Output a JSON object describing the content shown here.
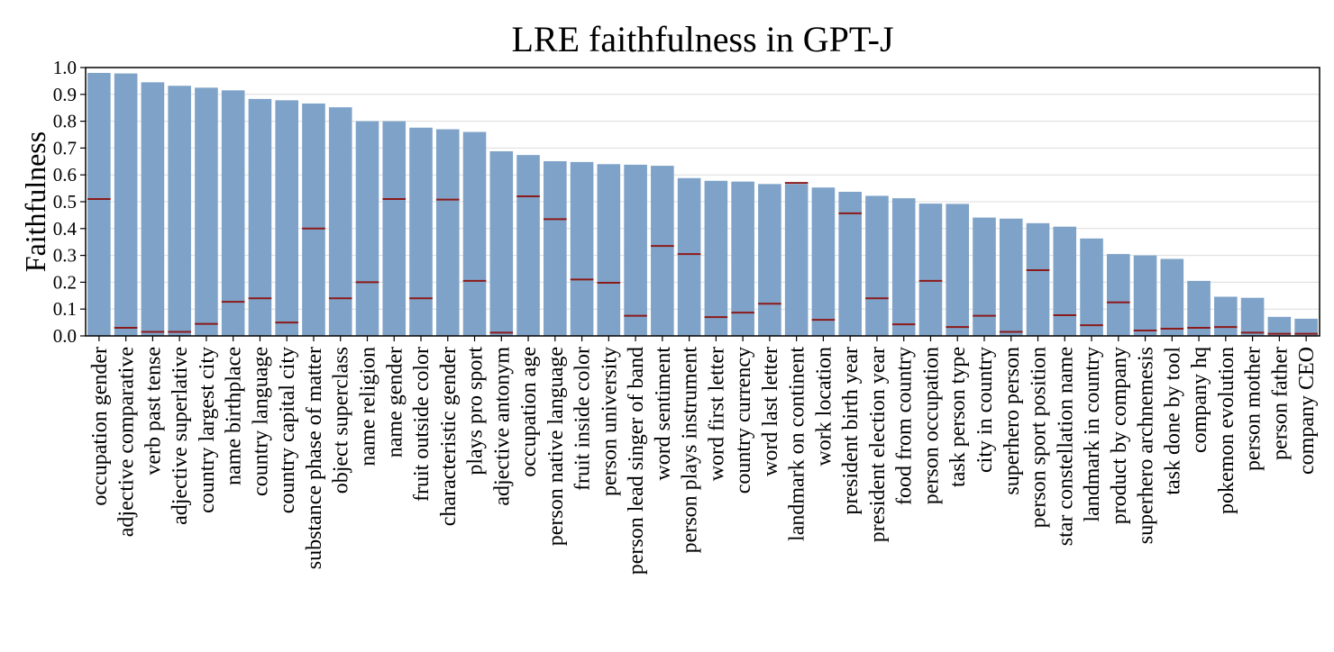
{
  "chart_data": {
    "type": "bar",
    "title": "LRE faithfulness in GPT-J",
    "xlabel": "",
    "ylabel": "Faithfulness",
    "ylim": [
      0.0,
      1.0
    ],
    "yticks": [
      "0.0",
      "0.1",
      "0.2",
      "0.3",
      "0.4",
      "0.5",
      "0.6",
      "0.7",
      "0.8",
      "0.9",
      "1.0"
    ],
    "grid": "horizontal",
    "bar_color": "#7fa3c8",
    "marker_color": "#8b1a1a",
    "categories": [
      "occupation gender",
      "adjective comparative",
      "verb past tense",
      "adjective superlative",
      "country largest city",
      "name birthplace",
      "country language",
      "country capital city",
      "substance phase of matter",
      "object superclass",
      "name religion",
      "name gender",
      "fruit outside color",
      "characteristic gender",
      "plays pro sport",
      "adjective antonym",
      "occupation age",
      "person native language",
      "fruit inside color",
      "person university",
      "person lead singer of band",
      "word sentiment",
      "person plays instrument",
      "word first letter",
      "country currency",
      "word last letter",
      "landmark on continent",
      "work location",
      "president birth year",
      "president election year",
      "food from country",
      "person occupation",
      "task person type",
      "city in country",
      "superhero person",
      "person sport position",
      "star constellation name",
      "landmark in country",
      "product by company",
      "superhero archnemesis",
      "task done by tool",
      "company hq",
      "pokemon evolution",
      "person mother",
      "person father",
      "company CEO"
    ],
    "values": [
      0.98,
      0.978,
      0.945,
      0.932,
      0.925,
      0.915,
      0.883,
      0.878,
      0.866,
      0.852,
      0.8,
      0.8,
      0.776,
      0.77,
      0.76,
      0.688,
      0.674,
      0.651,
      0.648,
      0.64,
      0.638,
      0.634,
      0.588,
      0.578,
      0.575,
      0.566,
      0.566,
      0.553,
      0.537,
      0.522,
      0.513,
      0.493,
      0.492,
      0.441,
      0.437,
      0.42,
      0.407,
      0.363,
      0.305,
      0.3,
      0.287,
      0.205,
      0.146,
      0.142,
      0.071,
      0.064
    ],
    "baseline": [
      0.51,
      0.03,
      0.015,
      0.015,
      0.045,
      0.127,
      0.14,
      0.05,
      0.4,
      0.14,
      0.2,
      0.51,
      0.14,
      0.508,
      0.205,
      0.012,
      0.52,
      0.435,
      0.21,
      0.198,
      0.075,
      0.335,
      0.305,
      0.07,
      0.087,
      0.12,
      0.57,
      0.06,
      0.457,
      0.14,
      0.043,
      0.205,
      0.033,
      0.075,
      0.015,
      0.245,
      0.077,
      0.04,
      0.125,
      0.02,
      0.027,
      0.03,
      0.033,
      0.012,
      0.008,
      0.008
    ]
  }
}
